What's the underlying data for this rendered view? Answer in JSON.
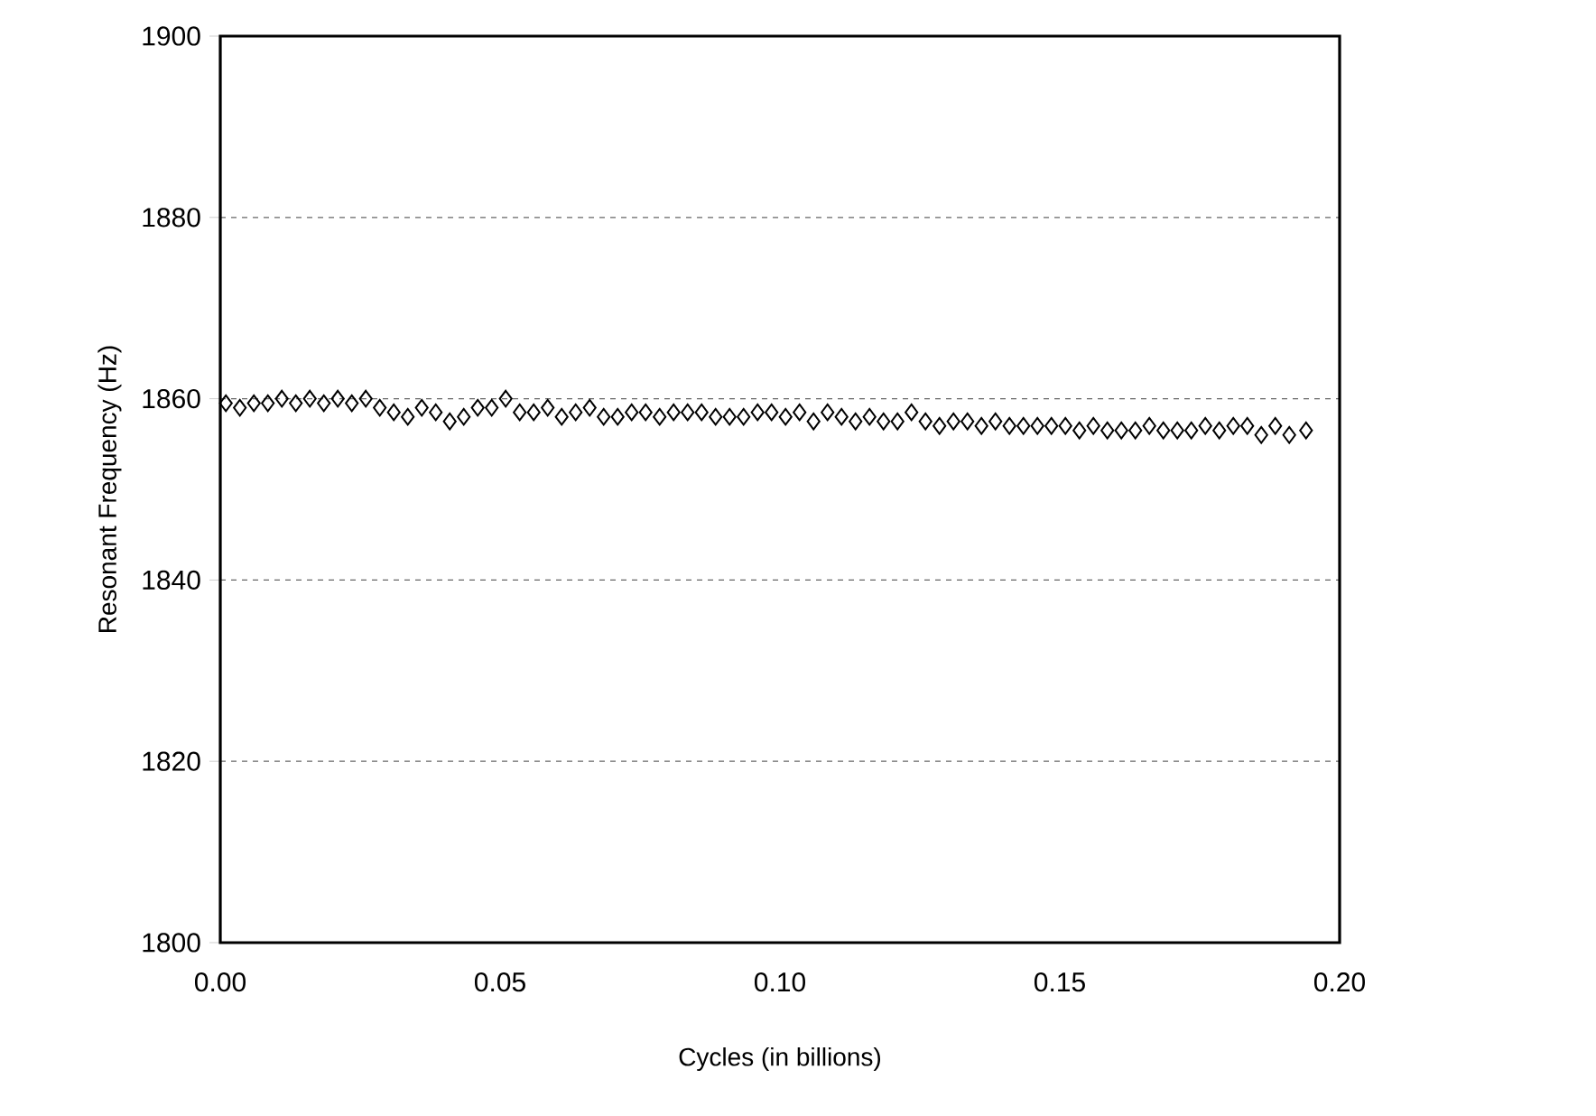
{
  "chart_data": {
    "type": "scatter",
    "xlabel": "Cycles (in billions)",
    "ylabel": "Resonant Frequency (Hz)",
    "marker": "diamond",
    "grid": "y",
    "color": "#000000",
    "x": [
      0.001,
      0.0035,
      0.006,
      0.0085,
      0.011,
      0.0135,
      0.016,
      0.0185,
      0.021,
      0.0235,
      0.026,
      0.0285,
      0.031,
      0.0335,
      0.036,
      0.0385,
      0.041,
      0.0435,
      0.046,
      0.0485,
      0.051,
      0.0535,
      0.056,
      0.0585,
      0.061,
      0.0635,
      0.066,
      0.0685,
      0.071,
      0.0735,
      0.076,
      0.0785,
      0.081,
      0.0835,
      0.086,
      0.0885,
      0.091,
      0.0935,
      0.096,
      0.0985,
      0.101,
      0.1035,
      0.106,
      0.1085,
      0.111,
      0.1135,
      0.116,
      0.1185,
      0.121,
      0.1235,
      0.126,
      0.1285,
      0.131,
      0.1335,
      0.136,
      0.1385,
      0.141,
      0.1435,
      0.146,
      0.1485,
      0.151,
      0.1535,
      0.156,
      0.1585,
      0.161,
      0.1635,
      0.166,
      0.1685,
      0.171,
      0.1735,
      0.176,
      0.1785,
      0.181,
      0.1835,
      0.186,
      0.1885,
      0.191,
      0.194
    ],
    "values": [
      1859.5,
      1859,
      1859.5,
      1859.5,
      1860,
      1859.5,
      1860,
      1859.5,
      1860,
      1859.5,
      1860,
      1859,
      1858.5,
      1858,
      1859,
      1858.5,
      1857.5,
      1858,
      1859,
      1859,
      1860,
      1858.5,
      1858.5,
      1859,
      1858,
      1858.5,
      1859,
      1858,
      1858,
      1858.5,
      1858.5,
      1858,
      1858.5,
      1858.5,
      1858.5,
      1858,
      1858,
      1858,
      1858.5,
      1858.5,
      1858,
      1858.5,
      1857.5,
      1858.5,
      1858,
      1857.5,
      1858,
      1857.5,
      1857.5,
      1858.5,
      1857.5,
      1857,
      1857.5,
      1857.5,
      1857,
      1857.5,
      1857,
      1857,
      1857,
      1857,
      1857,
      1856.5,
      1857,
      1856.5,
      1856.5,
      1856.5,
      1857,
      1856.5,
      1856.5,
      1856.5,
      1857,
      1856.5,
      1857,
      1857,
      1856,
      1857,
      1856,
      1856.5
    ],
    "xlim": [
      0,
      0.2
    ],
    "xticks": [
      {
        "value": 0,
        "label": "0.00"
      },
      {
        "value": 0.05,
        "label": "0.05"
      },
      {
        "value": 0.1,
        "label": "0.10"
      },
      {
        "value": 0.15,
        "label": "0.15"
      },
      {
        "value": 0.2,
        "label": "0.20"
      }
    ],
    "ylim": [
      1800,
      1900
    ],
    "yticks": [
      1800,
      1820,
      1840,
      1860,
      1880,
      1900
    ]
  }
}
